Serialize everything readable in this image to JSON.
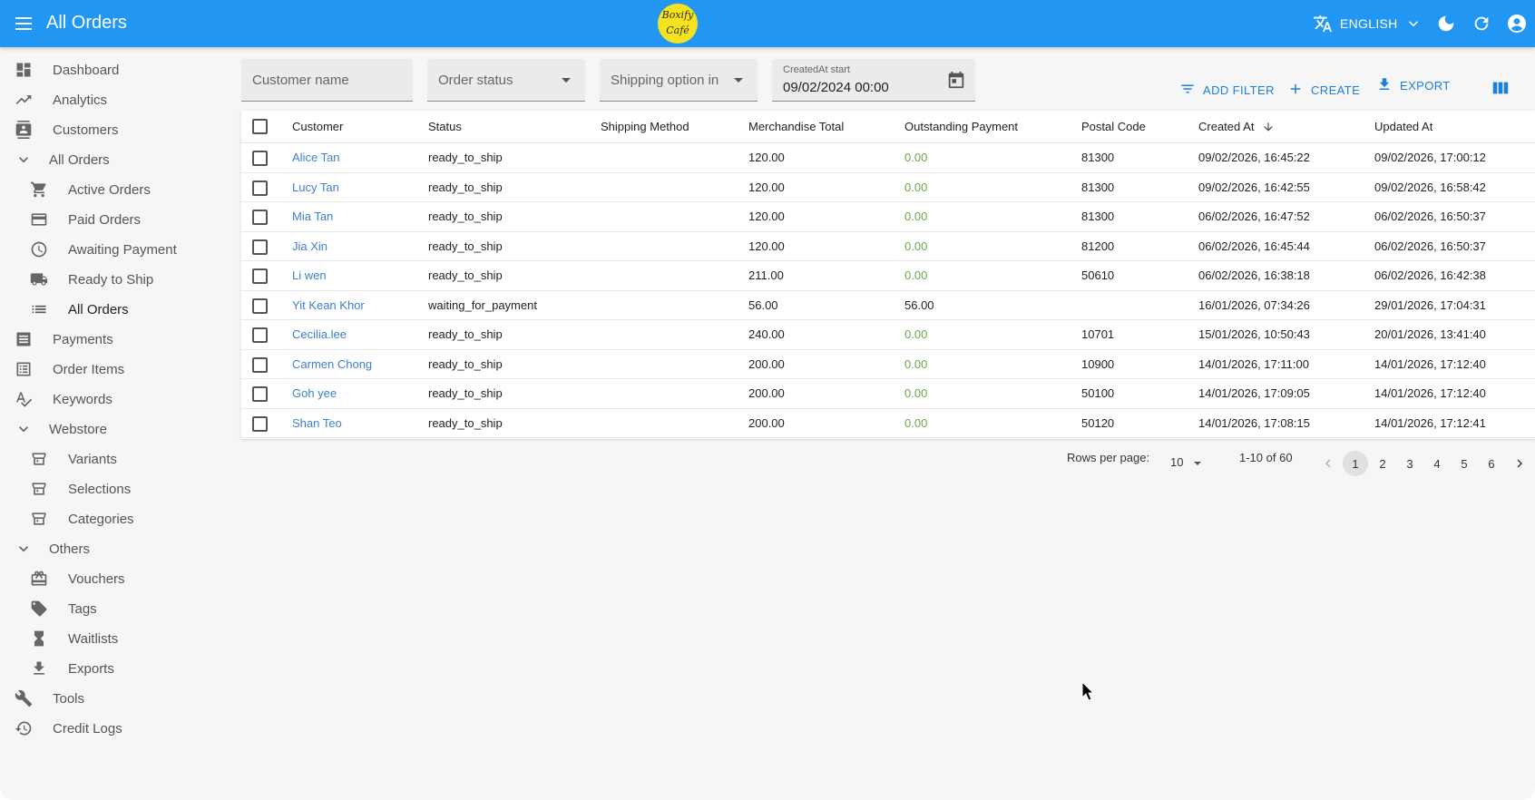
{
  "appbar": {
    "title": "All Orders",
    "logo_line1": "Boxify",
    "logo_line2": "Café",
    "language": "ENGLISH"
  },
  "sidebar": {
    "items": [
      {
        "label": "Dashboard",
        "icon": "dashboard-icon",
        "level": 0
      },
      {
        "label": "Analytics",
        "icon": "trending-up-icon",
        "level": 0
      },
      {
        "label": "Customers",
        "icon": "contacts-icon",
        "level": 0
      },
      {
        "label": "All Orders",
        "icon": "chevron-down-icon",
        "level": "group"
      },
      {
        "label": "Active Orders",
        "icon": "cart-icon",
        "level": 1
      },
      {
        "label": "Paid Orders",
        "icon": "credit-card-icon",
        "level": 1
      },
      {
        "label": "Awaiting Payment",
        "icon": "clock-icon",
        "level": 1
      },
      {
        "label": "Ready to Ship",
        "icon": "truck-icon",
        "level": 1
      },
      {
        "label": "All Orders",
        "icon": "list-icon",
        "level": 1,
        "active": true
      },
      {
        "label": "Payments",
        "icon": "receipt-icon",
        "level": 0
      },
      {
        "label": "Order Items",
        "icon": "list-alt-icon",
        "level": 0
      },
      {
        "label": "Keywords",
        "icon": "spellcheck-icon",
        "level": 0
      },
      {
        "label": "Webstore",
        "icon": "chevron-down-icon",
        "level": "group"
      },
      {
        "label": "Variants",
        "icon": "store-icon",
        "level": 1
      },
      {
        "label": "Selections",
        "icon": "store-icon",
        "level": 1
      },
      {
        "label": "Categories",
        "icon": "store-icon",
        "level": 1
      },
      {
        "label": "Others",
        "icon": "chevron-down-icon",
        "level": "group"
      },
      {
        "label": "Vouchers",
        "icon": "gift-icon",
        "level": 1
      },
      {
        "label": "Tags",
        "icon": "tag-icon",
        "level": 1
      },
      {
        "label": "Waitlists",
        "icon": "hourglass-icon",
        "level": 1
      },
      {
        "label": "Exports",
        "icon": "download-icon",
        "level": 1
      },
      {
        "label": "Tools",
        "icon": "wrench-icon",
        "level": 0
      },
      {
        "label": "Credit Logs",
        "icon": "history-icon",
        "level": 0
      }
    ]
  },
  "filters": {
    "customer_name": "Customer name",
    "order_status": "Order status",
    "shipping_option": "Shipping option in",
    "created_at_label": "CreatedAt start",
    "created_at_value": "09/02/2024 00:00"
  },
  "actions": {
    "add_filter": "ADD FILTER",
    "create": "CREATE",
    "export": "EXPORT"
  },
  "table": {
    "columns": [
      "Customer",
      "Status",
      "Shipping Method",
      "Merchandise Total",
      "Outstanding Payment",
      "Postal Code",
      "Created At",
      "Updated At"
    ],
    "rows": [
      [
        "Alice Tan",
        "ready_to_ship",
        "",
        "120.00",
        "0.00",
        "81300",
        "09/02/2026, 16:45:22",
        "09/02/2026, 17:00:12"
      ],
      [
        "Lucy Tan",
        "ready_to_ship",
        "",
        "120.00",
        "0.00",
        "81300",
        "09/02/2026, 16:42:55",
        "09/02/2026, 16:58:42"
      ],
      [
        "Mia Tan",
        "ready_to_ship",
        "",
        "120.00",
        "0.00",
        "81300",
        "06/02/2026, 16:47:52",
        "06/02/2026, 16:50:37"
      ],
      [
        "Jia Xin",
        "ready_to_ship",
        "",
        "120.00",
        "0.00",
        "81200",
        "06/02/2026, 16:45:44",
        "06/02/2026, 16:50:37"
      ],
      [
        "Li wen",
        "ready_to_ship",
        "",
        "211.00",
        "0.00",
        "50610",
        "06/02/2026, 16:38:18",
        "06/02/2026, 16:42:38"
      ],
      [
        "Yit Kean Khor",
        "waiting_for_payment",
        "",
        "56.00",
        "56.00",
        "",
        "16/01/2026, 07:34:26",
        "29/01/2026, 17:04:31"
      ],
      [
        "Cecilia.lee",
        "ready_to_ship",
        "",
        "240.00",
        "0.00",
        "10701",
        "15/01/2026, 10:50:43",
        "20/01/2026, 13:41:40"
      ],
      [
        "Carmen Chong",
        "ready_to_ship",
        "",
        "200.00",
        "0.00",
        "10900",
        "14/01/2026, 17:11:00",
        "14/01/2026, 17:12:40"
      ],
      [
        "Goh yee",
        "ready_to_ship",
        "",
        "200.00",
        "0.00",
        "50100",
        "14/01/2026, 17:09:05",
        "14/01/2026, 17:12:40"
      ],
      [
        "Shan Teo",
        "ready_to_ship",
        "",
        "200.00",
        "0.00",
        "50120",
        "14/01/2026, 17:08:15",
        "14/01/2026, 17:12:41"
      ]
    ]
  },
  "pagination": {
    "rows_per_page_label": "Rows per page:",
    "rows_per_page": "10",
    "range": "1-10 of 60",
    "pages": [
      "1",
      "2",
      "3",
      "4",
      "5",
      "6"
    ],
    "current_page": "1"
  },
  "colors": {
    "appbar": "#2196f3",
    "link": "#3f7fcf",
    "zero_amount": "#6ba84f",
    "action": "#1e7fd6"
  }
}
